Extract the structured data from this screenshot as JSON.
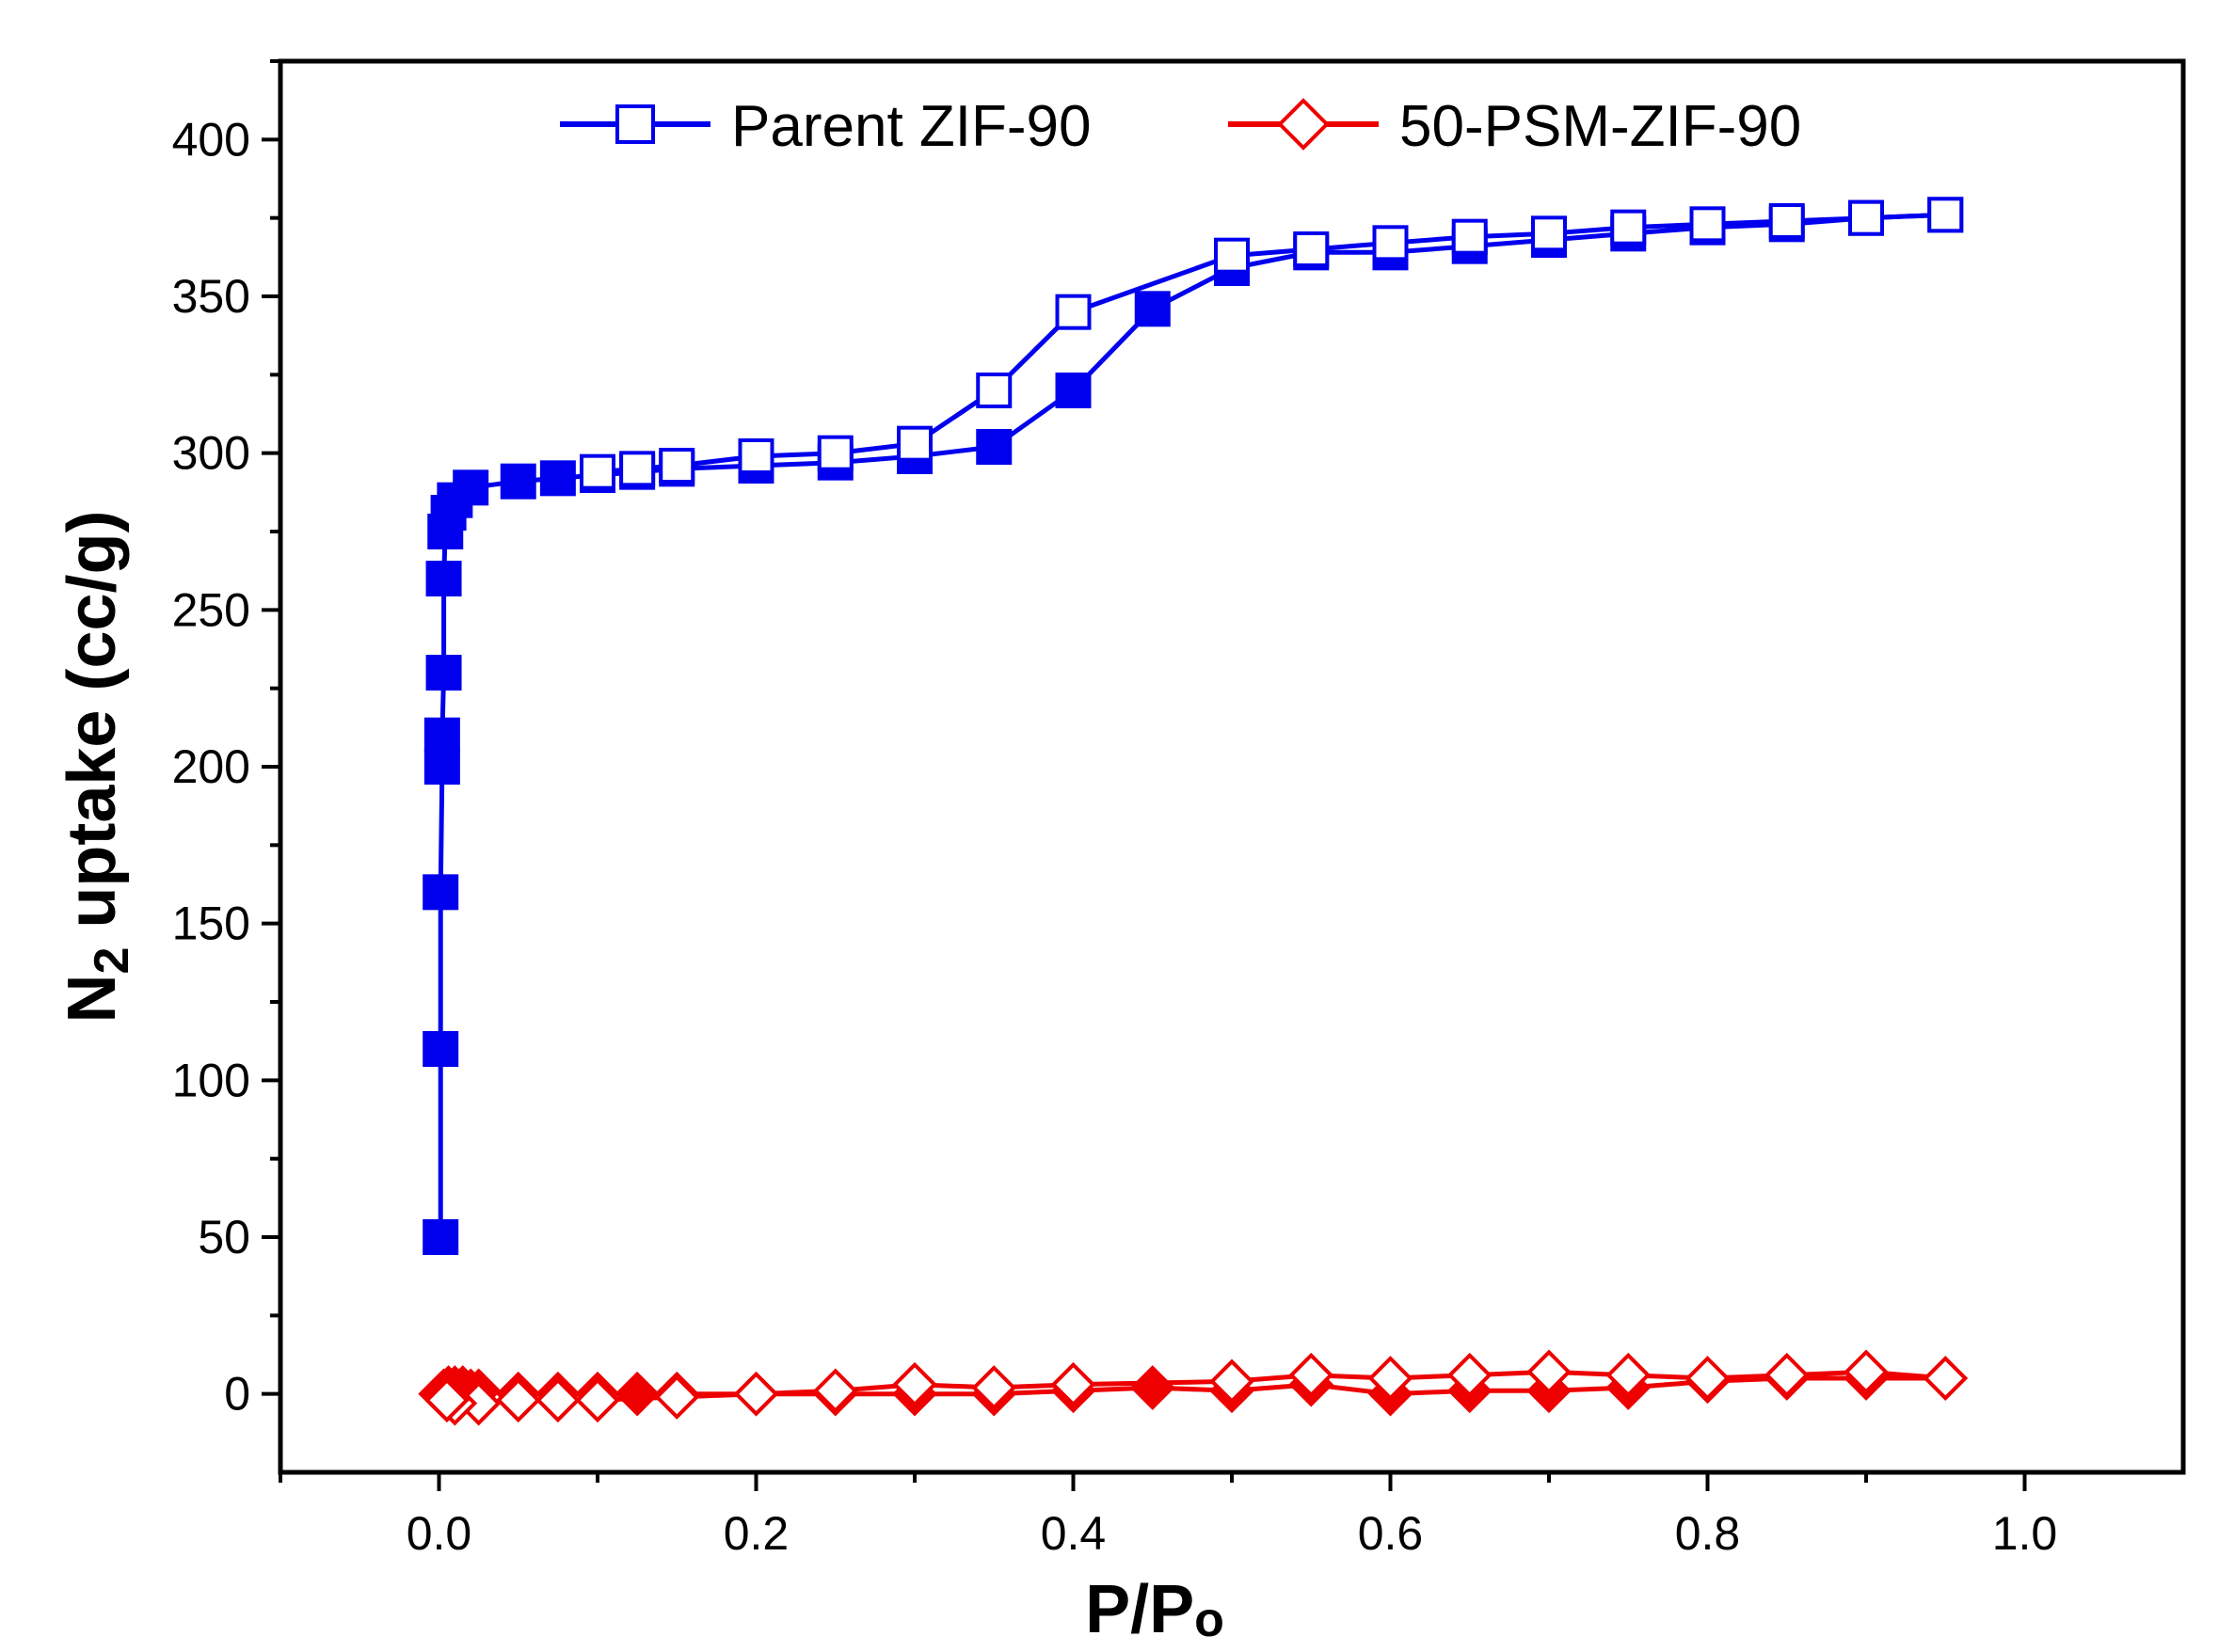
{
  "chart_data": {
    "type": "line",
    "title": "",
    "xlabel": {
      "main": "P/P",
      "sub": "o"
    },
    "ylabel": {
      "prefix": "N",
      "sub": "2",
      "suffix": " uptake (cc/g)"
    },
    "xlim": [
      -0.1,
      1.1
    ],
    "ylim": [
      -25,
      425
    ],
    "xticks": [
      0.0,
      0.2,
      0.4,
      0.6,
      0.8,
      1.0
    ],
    "xtick_labels": [
      "0.0",
      "0.2",
      "0.4",
      "0.6",
      "0.8",
      "1.0"
    ],
    "yticks": [
      0,
      50,
      100,
      150,
      200,
      250,
      300,
      350,
      400
    ],
    "ytick_labels": [
      "0",
      "50",
      "100",
      "150",
      "200",
      "250",
      "300",
      "350",
      "400"
    ],
    "grid": false,
    "legend_position": "top",
    "series": [
      {
        "name": "Parent ZIF-90",
        "color": "#0000ee",
        "marker": "square",
        "adsorption": {
          "x": [
            0.001,
            0.001,
            0.001,
            0.002,
            0.002,
            0.003,
            0.003,
            0.004,
            0.006,
            0.01,
            0.02,
            0.05,
            0.075,
            0.1,
            0.125,
            0.15,
            0.2,
            0.25,
            0.3,
            0.35,
            0.4,
            0.45,
            0.5,
            0.55,
            0.6,
            0.65,
            0.7,
            0.75,
            0.8,
            0.85,
            0.9,
            0.95
          ],
          "y": [
            50,
            110,
            160,
            200,
            210,
            230,
            260,
            275,
            281,
            285,
            289,
            291,
            292,
            293,
            294,
            295,
            296,
            297,
            299,
            302,
            320,
            346,
            359,
            364,
            364,
            366,
            368,
            370,
            372,
            373,
            375,
            376
          ]
        },
        "desorption": {
          "x": [
            0.95,
            0.9,
            0.85,
            0.8,
            0.75,
            0.7,
            0.65,
            0.6,
            0.55,
            0.5,
            0.4,
            0.35,
            0.3,
            0.25,
            0.2,
            0.15,
            0.125,
            0.1
          ],
          "y": [
            376,
            375,
            374,
            373,
            372,
            370,
            369,
            367,
            365,
            363,
            345,
            320,
            303,
            300,
            299,
            296,
            295,
            294
          ]
        }
      },
      {
        "name": "50-PSM-ZIF-90",
        "color": "#ee0000",
        "marker": "diamond",
        "adsorption": {
          "x": [
            0.001,
            0.003,
            0.006,
            0.01,
            0.015,
            0.02,
            0.025,
            0.05,
            0.075,
            0.1,
            0.125,
            0.15,
            0.2,
            0.25,
            0.3,
            0.35,
            0.4,
            0.45,
            0.5,
            0.55,
            0.6,
            0.65,
            0.7,
            0.75,
            0.8,
            0.85,
            0.9,
            0.95
          ],
          "y": [
            0,
            1,
            2,
            2,
            2,
            1,
            1,
            0,
            0,
            0,
            0,
            0,
            0,
            0,
            0,
            0,
            1,
            2,
            1,
            3,
            0,
            1,
            1,
            2,
            4,
            5,
            5,
            5
          ]
        },
        "desorption": {
          "x": [
            0.95,
            0.9,
            0.85,
            0.8,
            0.75,
            0.7,
            0.65,
            0.6,
            0.55,
            0.5,
            0.4,
            0.35,
            0.3,
            0.25,
            0.2,
            0.15,
            0.1,
            0.075,
            0.05,
            0.025,
            0.01,
            0.005
          ],
          "y": [
            5,
            7,
            6,
            5,
            6,
            7,
            6,
            5,
            6,
            4,
            3,
            2,
            3,
            1,
            0,
            -1,
            -2,
            -2,
            -2,
            -3,
            -3,
            -2
          ]
        }
      }
    ]
  }
}
